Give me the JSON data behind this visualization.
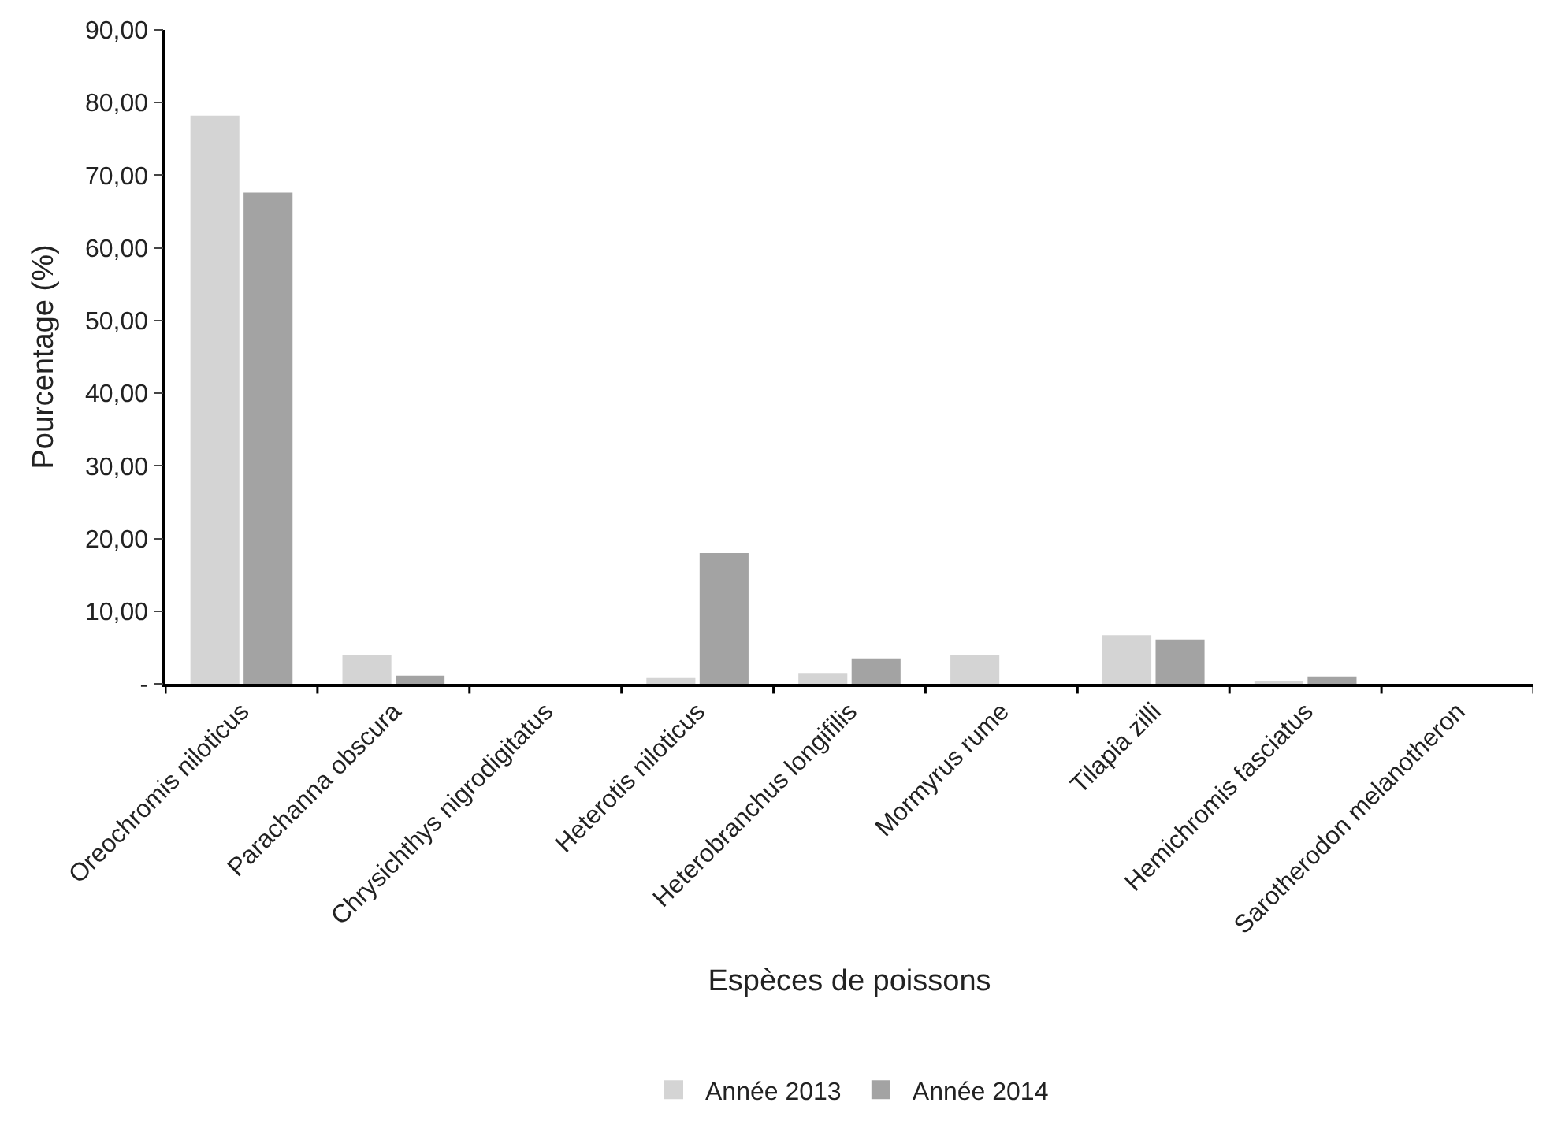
{
  "chart_data": {
    "type": "bar",
    "xlabel": "Espèces de poissons",
    "ylabel": "Pourcentage (%)",
    "categories": [
      "Oreochromis niloticus",
      "Parachanna obscura",
      "Chrysichthys nigrodigitatus",
      "Heterotis niloticus",
      "Heterobranchus longifilis",
      "Mormyrus rume",
      "Tilapia zilli",
      "Hemichromis fasciatus",
      "Sarotherodon melanotheron"
    ],
    "series": [
      {
        "name": "Année 2013",
        "color": "#d4d4d4",
        "values": [
          78.2,
          4.0,
          0,
          0.9,
          1.5,
          4.0,
          6.7,
          0.4,
          0
        ]
      },
      {
        "name": "Année 2014",
        "color": "#a3a3a3",
        "values": [
          67.6,
          1.1,
          0,
          18.0,
          3.5,
          0,
          6.1,
          1.0,
          0
        ]
      }
    ],
    "ylim": [
      0,
      90
    ],
    "yticks": [
      {
        "value": 0,
        "label": "-"
      },
      {
        "value": 10,
        "label": "10,00"
      },
      {
        "value": 20,
        "label": "20,00"
      },
      {
        "value": 30,
        "label": "30,00"
      },
      {
        "value": 40,
        "label": "40,00"
      },
      {
        "value": 50,
        "label": "50,00"
      },
      {
        "value": 60,
        "label": "60,00"
      },
      {
        "value": 70,
        "label": "70,00"
      },
      {
        "value": 80,
        "label": "80,00"
      },
      {
        "value": 90,
        "label": "90,00"
      }
    ],
    "legend": "bottom"
  }
}
